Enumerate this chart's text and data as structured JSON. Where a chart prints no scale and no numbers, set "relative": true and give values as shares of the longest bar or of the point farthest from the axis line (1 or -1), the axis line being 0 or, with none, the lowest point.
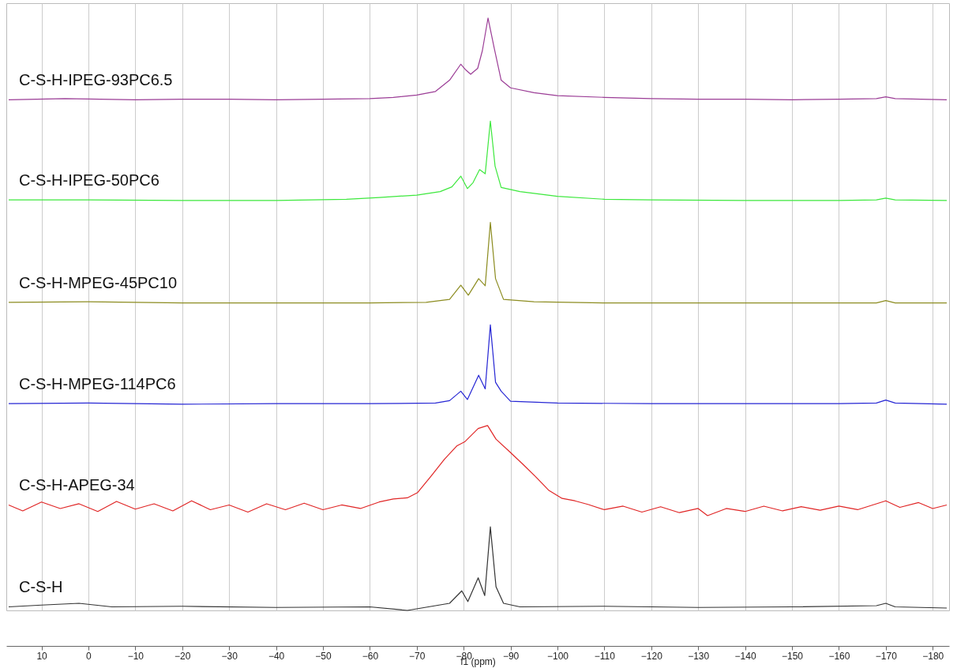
{
  "chart_data": {
    "type": "line",
    "xlabel": "f1 (ppm)",
    "relative": true,
    "grid": "x",
    "legend": false,
    "line_style": "solid",
    "marker": "none",
    "xlim": [
      17.5,
      -183.5
    ],
    "xticks": [
      10,
      0,
      -10,
      -20,
      -30,
      -40,
      -50,
      -60,
      -70,
      -80,
      -90,
      -100,
      -110,
      -120,
      -130,
      -140,
      -150,
      -160,
      -170,
      -180
    ],
    "series": [
      {
        "name": "C-S-H-IPEG-93PC6.5",
        "color": "#9b3d96",
        "x": [
          17,
          5,
          -10,
          -20,
          -30,
          -40,
          -50,
          -60,
          -65,
          -70,
          -74,
          -77,
          -79.4,
          -80.5,
          -81.5,
          -83,
          -84,
          -85.2,
          -86.5,
          -88,
          -90,
          -95,
          -100,
          -110,
          -120,
          -130,
          -140,
          -150,
          -160,
          -168,
          -170,
          -172,
          -183
        ],
        "values": [
          0.862,
          0.864,
          0.862,
          0.863,
          0.863,
          0.862,
          0.863,
          0.864,
          0.866,
          0.87,
          0.876,
          0.895,
          0.922,
          0.912,
          0.905,
          0.915,
          0.945,
          1.0,
          0.95,
          0.895,
          0.882,
          0.874,
          0.869,
          0.866,
          0.864,
          0.863,
          0.863,
          0.862,
          0.863,
          0.864,
          0.867,
          0.864,
          0.862
        ]
      },
      {
        "name": "C-S-H-IPEG-50PC6",
        "color": "#3de83d",
        "x": [
          17,
          0,
          -20,
          -40,
          -55,
          -62,
          -70,
          -75,
          -77.5,
          -79.4,
          -80.8,
          -82,
          -83.4,
          -84.6,
          -85.7,
          -86.7,
          -88,
          -92,
          -100,
          -110,
          -120,
          -140,
          -160,
          -168,
          -170,
          -172,
          -183
        ],
        "values": [
          0.693,
          0.693,
          0.692,
          0.692,
          0.694,
          0.697,
          0.701,
          0.707,
          0.715,
          0.733,
          0.712,
          0.722,
          0.744,
          0.737,
          0.826,
          0.75,
          0.714,
          0.707,
          0.699,
          0.694,
          0.693,
          0.692,
          0.692,
          0.693,
          0.696,
          0.693,
          0.692
        ]
      },
      {
        "name": "C-S-H-MPEG-45PC10",
        "color": "#8c8c20",
        "x": [
          17,
          0,
          -20,
          -40,
          -60,
          -72,
          -77,
          -79.4,
          -81,
          -83.2,
          -84.6,
          -85.7,
          -86.8,
          -88.5,
          -95,
          -110,
          -130,
          -150,
          -168,
          -170,
          -172,
          -183
        ],
        "values": [
          0.52,
          0.521,
          0.519,
          0.519,
          0.519,
          0.52,
          0.525,
          0.549,
          0.532,
          0.56,
          0.548,
          0.655,
          0.56,
          0.525,
          0.521,
          0.519,
          0.519,
          0.519,
          0.519,
          0.523,
          0.519,
          0.519
        ]
      },
      {
        "name": "C-S-H-MPEG-114PC6",
        "color": "#2626d4",
        "x": [
          17,
          0,
          -20,
          -40,
          -60,
          -74,
          -77,
          -79.4,
          -80.8,
          -83.2,
          -84.6,
          -85.7,
          -86.8,
          -88,
          -90,
          -100,
          -120,
          -140,
          -160,
          -168,
          -170,
          -172,
          -183
        ],
        "values": [
          0.349,
          0.35,
          0.348,
          0.349,
          0.349,
          0.35,
          0.354,
          0.37,
          0.356,
          0.397,
          0.374,
          0.482,
          0.385,
          0.37,
          0.353,
          0.35,
          0.349,
          0.349,
          0.349,
          0.35,
          0.355,
          0.35,
          0.348
        ]
      },
      {
        "name": "C-S-H-APEG-34",
        "color": "#e02626",
        "x": [
          17,
          14,
          10,
          6,
          2,
          -2,
          -6,
          -10,
          -14,
          -18,
          -22,
          -26,
          -30,
          -34,
          -38,
          -42,
          -46,
          -50,
          -54,
          -58,
          -62,
          -65,
          -68,
          -70.2,
          -73,
          -75.9,
          -78.6,
          -80.3,
          -83.1,
          -85.1,
          -86.9,
          -89.8,
          -92.6,
          -95.3,
          -98.1,
          -101,
          -103.7,
          -106.5,
          -110,
          -114,
          -118,
          -122,
          -126,
          -130,
          -132,
          -136,
          -140,
          -144,
          -148,
          -152,
          -156,
          -160,
          -164,
          -168,
          -170,
          -173,
          -177,
          -180,
          -183
        ],
        "values": [
          0.178,
          0.168,
          0.183,
          0.172,
          0.18,
          0.167,
          0.184,
          0.171,
          0.18,
          0.168,
          0.185,
          0.17,
          0.178,
          0.166,
          0.18,
          0.17,
          0.181,
          0.17,
          0.178,
          0.172,
          0.183,
          0.188,
          0.19,
          0.199,
          0.226,
          0.255,
          0.278,
          0.285,
          0.307,
          0.312,
          0.289,
          0.268,
          0.247,
          0.226,
          0.203,
          0.189,
          0.185,
          0.179,
          0.17,
          0.176,
          0.166,
          0.175,
          0.165,
          0.172,
          0.16,
          0.172,
          0.167,
          0.176,
          0.168,
          0.175,
          0.169,
          0.176,
          0.17,
          0.18,
          0.185,
          0.174,
          0.182,
          0.172,
          0.178
        ]
      },
      {
        "name": "C-S-H",
        "color": "#333333",
        "x": [
          17,
          10,
          2,
          -5,
          -20,
          -40,
          -60,
          -68,
          -74,
          -77,
          -79.6,
          -80.9,
          -83.1,
          -84.5,
          -85.7,
          -86.9,
          -88.5,
          -92,
          -110,
          -130,
          -150,
          -168,
          -170,
          -172,
          -183
        ],
        "values": [
          0.006,
          0.009,
          0.012,
          0.006,
          0.007,
          0.005,
          0.006,
          0.0,
          0.008,
          0.012,
          0.033,
          0.015,
          0.055,
          0.025,
          0.141,
          0.04,
          0.012,
          0.006,
          0.007,
          0.005,
          0.006,
          0.008,
          0.012,
          0.006,
          0.004
        ]
      }
    ]
  }
}
